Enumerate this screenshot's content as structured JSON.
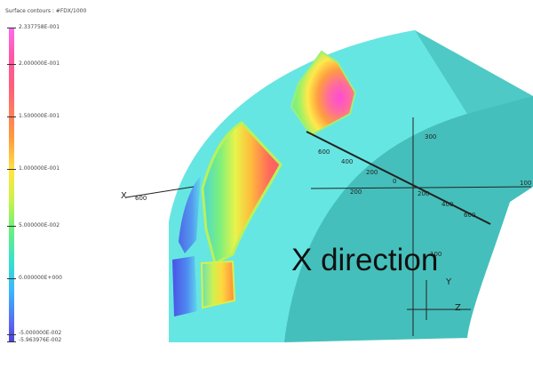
{
  "legend": {
    "title": "Surface contours : #FDX/1000",
    "labels": [
      "2.337758E-001",
      "2.000000E-001",
      "1.500000E-001",
      "1.000000E-001",
      "5.000000E-002",
      "0.000000E+000",
      "-5.000000E-002",
      "-5.963976E-002"
    ]
  },
  "axes": {
    "left_label": "X",
    "left_tick": "600",
    "top_tick": "300",
    "ticks": [
      "600",
      "400",
      "200",
      "0",
      "200",
      "400",
      "600"
    ],
    "right_tick": "100",
    "bottom_tick": "100",
    "y_label": "Y",
    "z_label": "Z"
  },
  "overlay": {
    "caption": "X direction"
  },
  "colors": {
    "model_face": "#66e6e2",
    "model_side": "#4ec9c5",
    "hot": "#ff4cd8",
    "cold": "#4d55e6"
  }
}
